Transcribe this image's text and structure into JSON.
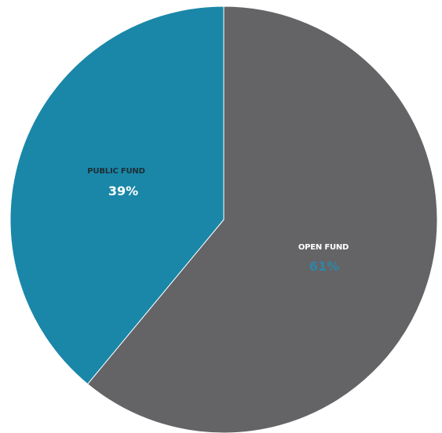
{
  "chart_data": {
    "type": "pie",
    "slices": [
      {
        "label": "OPEN FUND",
        "value": 61,
        "value_label": "61%",
        "color": "#646466",
        "label_color": "#ffffff",
        "value_color": "#2e86a7"
      },
      {
        "label": "PUBLIC FUND",
        "value": 39,
        "value_label": "39%",
        "color": "#1a87a8",
        "label_color": "#1c2e36",
        "value_color": "#ffffff"
      }
    ],
    "start_angle_deg": 0,
    "direction": "clockwise",
    "legend": "none"
  }
}
